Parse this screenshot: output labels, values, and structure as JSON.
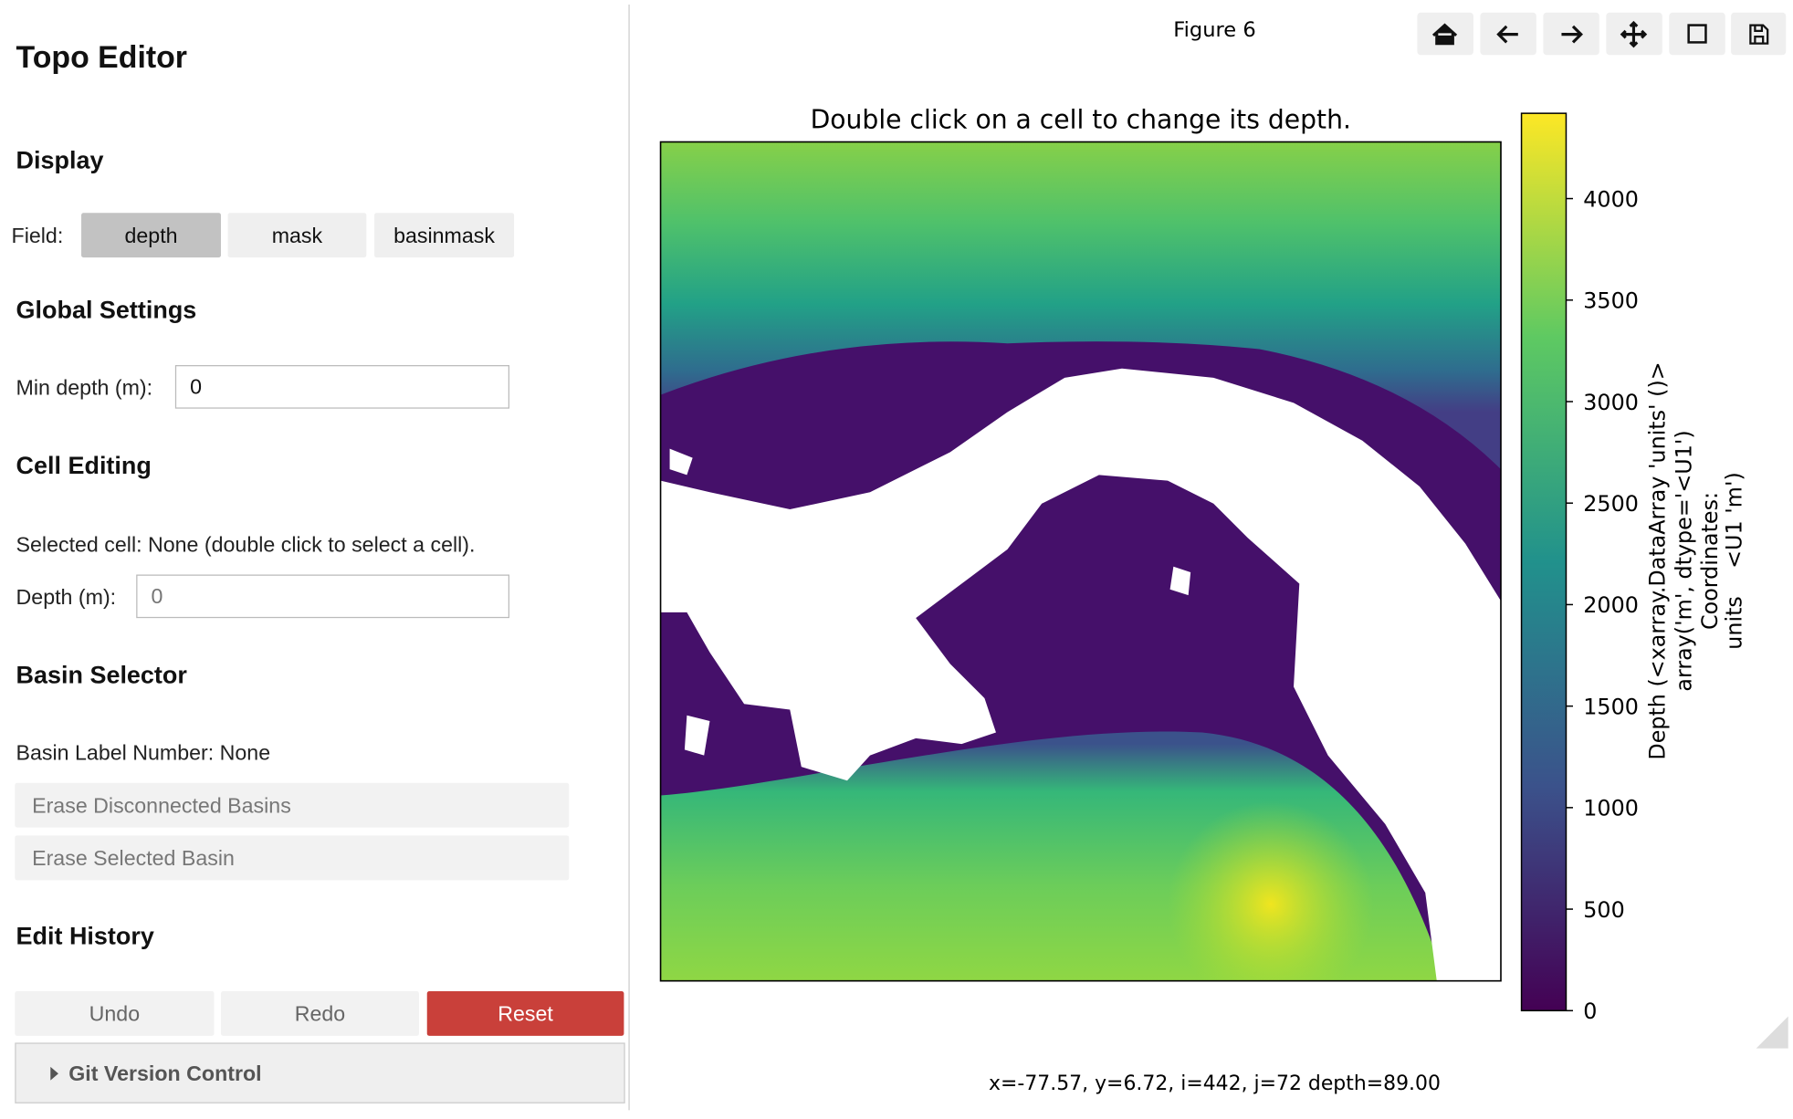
{
  "editor": {
    "title": "Topo Editor",
    "display": {
      "heading": "Display",
      "field_label": "Field:",
      "fields": [
        "depth",
        "mask",
        "basinmask"
      ]
    },
    "global_settings": {
      "heading": "Global Settings",
      "min_depth_label": "Min depth (m):",
      "min_depth_value": "0"
    },
    "cell_editing": {
      "heading": "Cell Editing",
      "selected_cell": "Selected cell: None (double click to select a cell).",
      "depth_label": "Depth (m):",
      "depth_placeholder": "0"
    },
    "basin_selector": {
      "heading": "Basin Selector",
      "label_number": "Basin Label Number: None",
      "buttons": [
        "Erase Disconnected Basins",
        "Erase Selected Basin"
      ]
    },
    "edit_history": {
      "heading": "Edit History",
      "buttons": [
        "Undo",
        "Redo",
        "Reset"
      ]
    },
    "git": {
      "summary": "Git Version Control"
    }
  },
  "figure": {
    "window_title": "Figure 6",
    "plot_title": "Double click on a cell to change its depth.",
    "colorbar": {
      "lim": [
        0,
        4420
      ],
      "ticks": [
        0,
        500,
        1000,
        1500,
        2000,
        2500,
        3000,
        3500,
        4000
      ],
      "label": [
        "Depth (<xarray.DataArray 'units' ()>",
        "array('m', dtype='<U1')",
        "Coordinates:",
        "units    <U1 'm')"
      ]
    },
    "status": "x=-77.57, y=6.72, i=442, j=72 depth=89.00"
  }
}
